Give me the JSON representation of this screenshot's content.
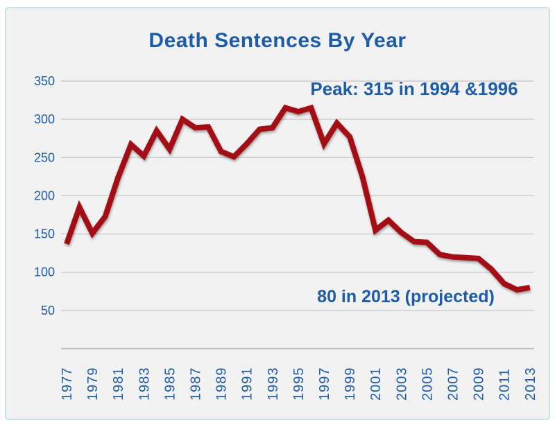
{
  "title": "Death Sentences By Year",
  "colors": {
    "line": "#a21115",
    "text_blue": "#1e5ca6",
    "gridline": "#c7c7c7",
    "baseline": "#adadad",
    "panel_bg": "#f2f2f3",
    "panel_border": "#c7e3e4",
    "outer_bg": "#ffffff"
  },
  "chart_data": {
    "type": "line",
    "title": "Death Sentences By Year",
    "x": [
      1977,
      1978,
      1979,
      1980,
      1981,
      1982,
      1983,
      1984,
      1985,
      1986,
      1987,
      1988,
      1989,
      1990,
      1991,
      1992,
      1993,
      1994,
      1995,
      1996,
      1997,
      1998,
      1999,
      2000,
      2001,
      2002,
      2003,
      2004,
      2005,
      2006,
      2007,
      2008,
      2009,
      2010,
      2011,
      2012,
      2013
    ],
    "values": [
      137,
      185,
      151,
      173,
      224,
      267,
      252,
      285,
      261,
      300,
      289,
      290,
      258,
      251,
      268,
      287,
      289,
      315,
      310,
      315,
      268,
      295,
      277,
      224,
      155,
      168,
      152,
      140,
      139,
      123,
      120,
      119,
      118,
      104,
      85,
      77,
      80
    ],
    "x_tick_labels": [
      "1977",
      "1979",
      "1981",
      "1983",
      "1985",
      "1987",
      "1989",
      "1991",
      "1993",
      "1995",
      "1997",
      "1999",
      "2001",
      "2003",
      "2005",
      "2007",
      "2009",
      "2011",
      "2013"
    ],
    "y_ticks": [
      50,
      100,
      150,
      200,
      250,
      300,
      350
    ],
    "ylim": [
      0,
      350
    ],
    "xlabel": "",
    "ylabel": "",
    "grid": "horizontal",
    "legend": "none",
    "x_tick_rotation": -90,
    "annotations": [
      {
        "text": "Peak: 315 in 1994 &1996",
        "x": 1996,
        "y": 340
      },
      {
        "text": "80 in 2013 (projected)",
        "x": 2005,
        "y": 62
      }
    ]
  }
}
